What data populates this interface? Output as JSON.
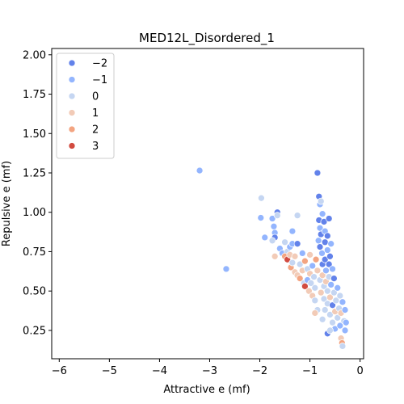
{
  "chart_data": {
    "type": "scatter",
    "title": "MED12L_Disordered_1",
    "xlabel": "Attractive e (mf)",
    "ylabel": "Repulsive e (mf)",
    "xlim": [
      -6.15,
      0.07
    ],
    "ylim": [
      0.07,
      2.04
    ],
    "xticks": [
      -6,
      -5,
      -4,
      -3,
      -2,
      -1,
      0
    ],
    "xtick_labels": [
      "−6",
      "−5",
      "−4",
      "−3",
      "−2",
      "−1",
      "0"
    ],
    "yticks": [
      0.25,
      0.5,
      0.75,
      1.0,
      1.25,
      1.5,
      1.75,
      2.0
    ],
    "ytick_labels": [
      "0.25",
      "0.50",
      "0.75",
      "1.00",
      "1.25",
      "1.50",
      "1.75",
      "2.00"
    ],
    "grid": false,
    "legend_position": "top-left",
    "hue_palette": "coolwarm",
    "legend": [
      {
        "label": "−2",
        "hue": -2,
        "color": "#6282ea"
      },
      {
        "label": "−1",
        "hue": -1,
        "color": "#93b5fe"
      },
      {
        "label": "0",
        "hue": 0,
        "color": "#c5d6f2"
      },
      {
        "label": "1",
        "hue": 1,
        "color": "#f2cbb7"
      },
      {
        "label": "2",
        "hue": 2,
        "color": "#f3a481"
      },
      {
        "label": "3",
        "hue": 3,
        "color": "#d24b40"
      }
    ],
    "points": [
      {
        "x": -3.2,
        "y": 1.265,
        "hue": -1
      },
      {
        "x": -2.67,
        "y": 0.64,
        "hue": -1
      },
      {
        "x": -1.97,
        "y": 1.09,
        "hue": 0
      },
      {
        "x": -1.98,
        "y": 0.965,
        "hue": -1
      },
      {
        "x": -1.9,
        "y": 0.84,
        "hue": -1
      },
      {
        "x": -1.75,
        "y": 0.96,
        "hue": -1
      },
      {
        "x": -1.65,
        "y": 1.0,
        "hue": -2
      },
      {
        "x": -1.65,
        "y": 0.98,
        "hue": 0
      },
      {
        "x": -1.72,
        "y": 0.91,
        "hue": -1
      },
      {
        "x": -1.7,
        "y": 0.87,
        "hue": -1
      },
      {
        "x": -1.7,
        "y": 0.84,
        "hue": -2
      },
      {
        "x": -1.75,
        "y": 0.82,
        "hue": 0
      },
      {
        "x": -1.6,
        "y": 0.77,
        "hue": -1
      },
      {
        "x": -1.55,
        "y": 0.74,
        "hue": -1
      },
      {
        "x": -1.5,
        "y": 0.81,
        "hue": 0
      },
      {
        "x": -1.45,
        "y": 0.75,
        "hue": 0
      },
      {
        "x": -1.4,
        "y": 0.78,
        "hue": -1
      },
      {
        "x": -1.35,
        "y": 0.88,
        "hue": -1
      },
      {
        "x": -1.35,
        "y": 0.8,
        "hue": -1
      },
      {
        "x": -1.25,
        "y": 0.98,
        "hue": 0
      },
      {
        "x": -1.7,
        "y": 0.72,
        "hue": 1
      },
      {
        "x": -1.5,
        "y": 0.72,
        "hue": 2
      },
      {
        "x": -1.45,
        "y": 0.7,
        "hue": 3
      },
      {
        "x": -1.4,
        "y": 0.73,
        "hue": 1
      },
      {
        "x": -1.38,
        "y": 0.65,
        "hue": 2
      },
      {
        "x": -1.35,
        "y": 0.68,
        "hue": 0
      },
      {
        "x": -1.3,
        "y": 0.72,
        "hue": 1
      },
      {
        "x": -1.3,
        "y": 0.62,
        "hue": 1
      },
      {
        "x": -1.25,
        "y": 0.8,
        "hue": -2
      },
      {
        "x": -1.25,
        "y": 0.6,
        "hue": 1
      },
      {
        "x": -1.2,
        "y": 0.67,
        "hue": 0
      },
      {
        "x": -1.2,
        "y": 0.58,
        "hue": 2
      },
      {
        "x": -1.15,
        "y": 0.74,
        "hue": -1
      },
      {
        "x": -1.15,
        "y": 0.63,
        "hue": 1
      },
      {
        "x": -1.12,
        "y": 0.55,
        "hue": 0
      },
      {
        "x": -1.1,
        "y": 0.69,
        "hue": 2
      },
      {
        "x": -1.1,
        "y": 0.53,
        "hue": 3
      },
      {
        "x": -1.05,
        "y": 0.64,
        "hue": 0
      },
      {
        "x": -1.05,
        "y": 0.57,
        "hue": -1
      },
      {
        "x": -1.02,
        "y": 0.5,
        "hue": 1
      },
      {
        "x": -1.0,
        "y": 0.73,
        "hue": 1
      },
      {
        "x": -1.0,
        "y": 0.61,
        "hue": 1
      },
      {
        "x": -0.98,
        "y": 0.55,
        "hue": 0
      },
      {
        "x": -0.95,
        "y": 0.47,
        "hue": 1
      },
      {
        "x": -0.95,
        "y": 0.66,
        "hue": -1
      },
      {
        "x": -0.92,
        "y": 0.59,
        "hue": 0
      },
      {
        "x": -0.9,
        "y": 0.52,
        "hue": 0
      },
      {
        "x": -0.9,
        "y": 0.44,
        "hue": 0
      },
      {
        "x": -0.88,
        "y": 0.7,
        "hue": 2
      },
      {
        "x": -0.85,
        "y": 0.63,
        "hue": 1
      },
      {
        "x": -0.85,
        "y": 1.25,
        "hue": -2
      },
      {
        "x": -0.82,
        "y": 1.1,
        "hue": -2
      },
      {
        "x": -0.8,
        "y": 1.05,
        "hue": -1
      },
      {
        "x": -0.78,
        "y": 1.07,
        "hue": 0
      },
      {
        "x": -0.82,
        "y": 0.95,
        "hue": -2
      },
      {
        "x": -0.8,
        "y": 0.9,
        "hue": -1
      },
      {
        "x": -0.78,
        "y": 0.86,
        "hue": -2
      },
      {
        "x": -0.83,
        "y": 0.82,
        "hue": -1
      },
      {
        "x": -0.8,
        "y": 0.78,
        "hue": -2
      },
      {
        "x": -0.8,
        "y": 0.57,
        "hue": 0
      },
      {
        "x": -0.78,
        "y": 0.49,
        "hue": 1
      },
      {
        "x": -0.76,
        "y": 0.74,
        "hue": -1
      },
      {
        "x": -0.75,
        "y": 0.99,
        "hue": -1
      },
      {
        "x": -0.75,
        "y": 0.67,
        "hue": -2
      },
      {
        "x": -0.75,
        "y": 0.6,
        "hue": 1
      },
      {
        "x": -0.72,
        "y": 0.94,
        "hue": -2
      },
      {
        "x": -0.72,
        "y": 0.53,
        "hue": 0
      },
      {
        "x": -0.72,
        "y": 0.45,
        "hue": 0
      },
      {
        "x": -0.7,
        "y": 0.88,
        "hue": -1
      },
      {
        "x": -0.7,
        "y": 0.81,
        "hue": -2
      },
      {
        "x": -0.7,
        "y": 0.7,
        "hue": -2
      },
      {
        "x": -0.7,
        "y": 0.38,
        "hue": 0
      },
      {
        "x": -0.68,
        "y": 0.63,
        "hue": -1
      },
      {
        "x": -0.68,
        "y": 0.56,
        "hue": 1
      },
      {
        "x": -0.65,
        "y": 0.85,
        "hue": -2
      },
      {
        "x": -0.65,
        "y": 0.76,
        "hue": -1
      },
      {
        "x": -0.65,
        "y": 0.5,
        "hue": 0
      },
      {
        "x": -0.65,
        "y": 0.42,
        "hue": 0
      },
      {
        "x": -0.62,
        "y": 0.96,
        "hue": -2
      },
      {
        "x": -0.62,
        "y": 0.67,
        "hue": -2
      },
      {
        "x": -0.62,
        "y": 0.59,
        "hue": 0
      },
      {
        "x": -0.6,
        "y": 0.72,
        "hue": -2
      },
      {
        "x": -0.6,
        "y": 0.46,
        "hue": 1
      },
      {
        "x": -0.6,
        "y": 0.35,
        "hue": 0
      },
      {
        "x": -0.58,
        "y": 0.8,
        "hue": -1
      },
      {
        "x": -0.58,
        "y": 0.54,
        "hue": -1
      },
      {
        "x": -0.55,
        "y": 0.64,
        "hue": -1
      },
      {
        "x": -0.55,
        "y": 0.41,
        "hue": -2
      },
      {
        "x": -0.55,
        "y": 0.3,
        "hue": 0
      },
      {
        "x": -0.52,
        "y": 0.58,
        "hue": -2
      },
      {
        "x": -0.52,
        "y": 0.49,
        "hue": 0
      },
      {
        "x": -0.5,
        "y": 0.37,
        "hue": 1
      },
      {
        "x": -0.5,
        "y": 0.26,
        "hue": -1
      },
      {
        "x": -0.48,
        "y": 0.44,
        "hue": 0
      },
      {
        "x": -0.45,
        "y": 0.52,
        "hue": -1
      },
      {
        "x": -0.45,
        "y": 0.33,
        "hue": 0
      },
      {
        "x": -0.42,
        "y": 0.39,
        "hue": 0
      },
      {
        "x": -0.4,
        "y": 0.47,
        "hue": 0
      },
      {
        "x": -0.4,
        "y": 0.28,
        "hue": -1
      },
      {
        "x": -0.38,
        "y": 0.36,
        "hue": 1
      },
      {
        "x": -0.38,
        "y": 0.2,
        "hue": 1
      },
      {
        "x": -0.36,
        "y": 0.17,
        "hue": 2
      },
      {
        "x": -0.35,
        "y": 0.43,
        "hue": -1
      },
      {
        "x": -0.35,
        "y": 0.15,
        "hue": 0
      },
      {
        "x": -0.32,
        "y": 0.31,
        "hue": 0
      },
      {
        "x": -0.3,
        "y": 0.25,
        "hue": -1
      },
      {
        "x": -0.3,
        "y": 0.38,
        "hue": -1
      },
      {
        "x": -0.28,
        "y": 0.3,
        "hue": -1
      },
      {
        "x": -0.65,
        "y": 0.23,
        "hue": -2
      },
      {
        "x": -0.6,
        "y": 0.25,
        "hue": 0
      },
      {
        "x": -0.75,
        "y": 0.32,
        "hue": 0
      },
      {
        "x": -0.85,
        "y": 0.38,
        "hue": 0
      },
      {
        "x": -0.9,
        "y": 0.36,
        "hue": 1
      }
    ]
  }
}
